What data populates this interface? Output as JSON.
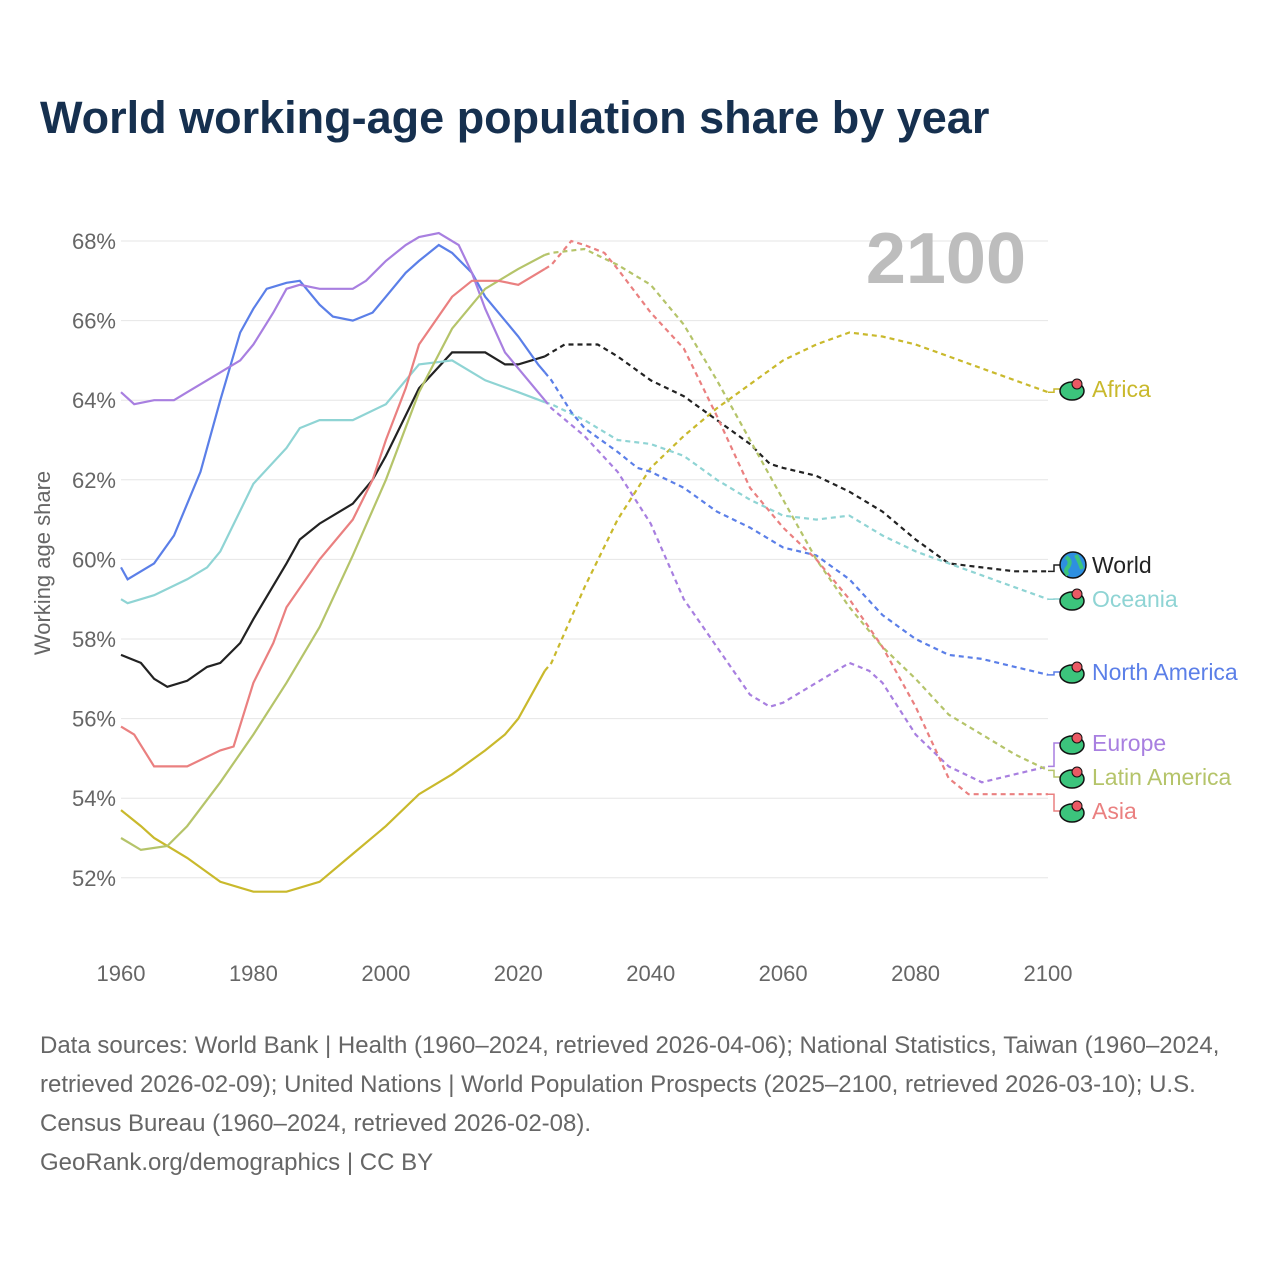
{
  "chart_data": {
    "type": "line",
    "title": "World working-age population share by year",
    "ylabel": "Working age share",
    "xlabel": "",
    "year_label": "2100",
    "xlim": [
      1960,
      2100
    ],
    "ylim": [
      50.5,
      69
    ],
    "x_ticks": [
      "1960",
      "1980",
      "2000",
      "2020",
      "2040",
      "2060",
      "2080",
      "2100"
    ],
    "y_ticks": [
      "52%",
      "54%",
      "56%",
      "58%",
      "60%",
      "62%",
      "64%",
      "66%",
      "68%"
    ],
    "grid": true,
    "projection_start": 2024,
    "series": [
      {
        "name": "Africa",
        "color": "#c9b92c",
        "points": [
          [
            1960,
            53.7
          ],
          [
            1963,
            53.3
          ],
          [
            1965,
            53.0
          ],
          [
            1970,
            52.5
          ],
          [
            1975,
            51.9
          ],
          [
            1980,
            51.65
          ],
          [
            1985,
            51.65
          ],
          [
            1990,
            51.9
          ],
          [
            1995,
            52.6
          ],
          [
            2000,
            53.3
          ],
          [
            2005,
            54.1
          ],
          [
            2010,
            54.6
          ],
          [
            2015,
            55.2
          ],
          [
            2018,
            55.6
          ],
          [
            2020,
            56.0
          ],
          [
            2024,
            57.2
          ],
          [
            2025,
            57.4
          ],
          [
            2030,
            59.3
          ],
          [
            2035,
            61.0
          ],
          [
            2040,
            62.3
          ],
          [
            2045,
            63.1
          ],
          [
            2050,
            63.8
          ],
          [
            2055,
            64.4
          ],
          [
            2060,
            65.0
          ],
          [
            2065,
            65.4
          ],
          [
            2070,
            65.7
          ],
          [
            2075,
            65.6
          ],
          [
            2080,
            65.4
          ],
          [
            2085,
            65.1
          ],
          [
            2090,
            64.8
          ],
          [
            2095,
            64.5
          ],
          [
            2100,
            64.2
          ]
        ]
      },
      {
        "name": "World",
        "color": "#222222",
        "points": [
          [
            1960,
            57.6
          ],
          [
            1963,
            57.4
          ],
          [
            1965,
            57.0
          ],
          [
            1967,
            56.8
          ],
          [
            1970,
            56.95
          ],
          [
            1973,
            57.3
          ],
          [
            1975,
            57.4
          ],
          [
            1978,
            57.9
          ],
          [
            1980,
            58.5
          ],
          [
            1985,
            59.9
          ],
          [
            1987,
            60.5
          ],
          [
            1990,
            60.9
          ],
          [
            1995,
            61.4
          ],
          [
            1998,
            62.0
          ],
          [
            2000,
            62.6
          ],
          [
            2005,
            64.3
          ],
          [
            2010,
            65.2
          ],
          [
            2015,
            65.2
          ],
          [
            2018,
            64.9
          ],
          [
            2020,
            64.9
          ],
          [
            2024,
            65.1
          ],
          [
            2025,
            65.2
          ],
          [
            2027,
            65.4
          ],
          [
            2032,
            65.4
          ],
          [
            2035,
            65.1
          ],
          [
            2040,
            64.5
          ],
          [
            2045,
            64.1
          ],
          [
            2050,
            63.5
          ],
          [
            2055,
            62.9
          ],
          [
            2058,
            62.4
          ],
          [
            2060,
            62.3
          ],
          [
            2065,
            62.1
          ],
          [
            2070,
            61.7
          ],
          [
            2075,
            61.2
          ],
          [
            2080,
            60.5
          ],
          [
            2085,
            59.9
          ],
          [
            2090,
            59.8
          ],
          [
            2095,
            59.7
          ],
          [
            2100,
            59.7
          ]
        ]
      },
      {
        "name": "Oceania",
        "color": "#8fd4d4",
        "points": [
          [
            1960,
            59.0
          ],
          [
            1961,
            58.9
          ],
          [
            1965,
            59.1
          ],
          [
            1970,
            59.5
          ],
          [
            1973,
            59.8
          ],
          [
            1975,
            60.2
          ],
          [
            1980,
            61.9
          ],
          [
            1985,
            62.8
          ],
          [
            1987,
            63.3
          ],
          [
            1990,
            63.5
          ],
          [
            1995,
            63.5
          ],
          [
            2000,
            63.9
          ],
          [
            2003,
            64.5
          ],
          [
            2005,
            64.9
          ],
          [
            2010,
            65.0
          ],
          [
            2013,
            64.7
          ],
          [
            2015,
            64.5
          ],
          [
            2020,
            64.2
          ],
          [
            2024,
            63.95
          ],
          [
            2025,
            63.9
          ],
          [
            2030,
            63.5
          ],
          [
            2035,
            63.0
          ],
          [
            2040,
            62.9
          ],
          [
            2045,
            62.6
          ],
          [
            2050,
            62.0
          ],
          [
            2055,
            61.5
          ],
          [
            2060,
            61.1
          ],
          [
            2065,
            61.0
          ],
          [
            2070,
            61.1
          ],
          [
            2075,
            60.6
          ],
          [
            2080,
            60.2
          ],
          [
            2085,
            59.9
          ],
          [
            2090,
            59.6
          ],
          [
            2095,
            59.3
          ],
          [
            2100,
            59.0
          ]
        ]
      },
      {
        "name": "North America",
        "color": "#5b7fe8",
        "points": [
          [
            1960,
            59.8
          ],
          [
            1961,
            59.5
          ],
          [
            1965,
            59.9
          ],
          [
            1968,
            60.6
          ],
          [
            1972,
            62.2
          ],
          [
            1975,
            64.0
          ],
          [
            1978,
            65.7
          ],
          [
            1980,
            66.3
          ],
          [
            1982,
            66.8
          ],
          [
            1985,
            66.95
          ],
          [
            1987,
            67.0
          ],
          [
            1990,
            66.4
          ],
          [
            1992,
            66.1
          ],
          [
            1995,
            66.0
          ],
          [
            1998,
            66.2
          ],
          [
            2000,
            66.6
          ],
          [
            2003,
            67.2
          ],
          [
            2005,
            67.5
          ],
          [
            2008,
            67.9
          ],
          [
            2010,
            67.7
          ],
          [
            2013,
            67.2
          ],
          [
            2015,
            66.6
          ],
          [
            2020,
            65.6
          ],
          [
            2023,
            64.9
          ],
          [
            2024,
            64.7
          ],
          [
            2025,
            64.5
          ],
          [
            2028,
            63.7
          ],
          [
            2030,
            63.3
          ],
          [
            2035,
            62.7
          ],
          [
            2038,
            62.3
          ],
          [
            2040,
            62.2
          ],
          [
            2045,
            61.8
          ],
          [
            2050,
            61.2
          ],
          [
            2055,
            60.8
          ],
          [
            2060,
            60.3
          ],
          [
            2065,
            60.1
          ],
          [
            2070,
            59.5
          ],
          [
            2075,
            58.6
          ],
          [
            2080,
            58.0
          ],
          [
            2085,
            57.6
          ],
          [
            2090,
            57.5
          ],
          [
            2095,
            57.3
          ],
          [
            2100,
            57.1
          ]
        ]
      },
      {
        "name": "Europe",
        "color": "#a87fe0",
        "points": [
          [
            1960,
            64.2
          ],
          [
            1962,
            63.9
          ],
          [
            1965,
            64.0
          ],
          [
            1968,
            64.0
          ],
          [
            1970,
            64.2
          ],
          [
            1973,
            64.5
          ],
          [
            1978,
            65.0
          ],
          [
            1980,
            65.4
          ],
          [
            1983,
            66.2
          ],
          [
            1985,
            66.8
          ],
          [
            1987,
            66.9
          ],
          [
            1990,
            66.8
          ],
          [
            1995,
            66.8
          ],
          [
            1997,
            67.0
          ],
          [
            2000,
            67.5
          ],
          [
            2003,
            67.9
          ],
          [
            2005,
            68.1
          ],
          [
            2008,
            68.2
          ],
          [
            2011,
            67.9
          ],
          [
            2013,
            67.2
          ],
          [
            2015,
            66.3
          ],
          [
            2018,
            65.2
          ],
          [
            2020,
            64.8
          ],
          [
            2023,
            64.2
          ],
          [
            2024,
            64.0
          ],
          [
            2025,
            63.8
          ],
          [
            2030,
            63.1
          ],
          [
            2035,
            62.2
          ],
          [
            2040,
            60.9
          ],
          [
            2045,
            59.0
          ],
          [
            2050,
            57.8
          ],
          [
            2055,
            56.6
          ],
          [
            2058,
            56.3
          ],
          [
            2060,
            56.4
          ],
          [
            2065,
            56.9
          ],
          [
            2070,
            57.4
          ],
          [
            2073,
            57.2
          ],
          [
            2075,
            56.9
          ],
          [
            2080,
            55.6
          ],
          [
            2085,
            54.8
          ],
          [
            2090,
            54.4
          ],
          [
            2095,
            54.6
          ],
          [
            2100,
            54.8
          ]
        ]
      },
      {
        "name": "Latin America",
        "color": "#b5c46a",
        "points": [
          [
            1960,
            53.0
          ],
          [
            1963,
            52.7
          ],
          [
            1967,
            52.8
          ],
          [
            1970,
            53.3
          ],
          [
            1975,
            54.4
          ],
          [
            1980,
            55.6
          ],
          [
            1985,
            56.9
          ],
          [
            1990,
            58.3
          ],
          [
            1995,
            60.1
          ],
          [
            2000,
            62.0
          ],
          [
            2005,
            64.2
          ],
          [
            2010,
            65.8
          ],
          [
            2015,
            66.8
          ],
          [
            2020,
            67.3
          ],
          [
            2024,
            67.65
          ],
          [
            2025,
            67.7
          ],
          [
            2030,
            67.8
          ],
          [
            2035,
            67.4
          ],
          [
            2040,
            66.9
          ],
          [
            2045,
            65.9
          ],
          [
            2050,
            64.5
          ],
          [
            2055,
            63.0
          ],
          [
            2060,
            61.5
          ],
          [
            2065,
            60.0
          ],
          [
            2070,
            58.8
          ],
          [
            2075,
            57.8
          ],
          [
            2080,
            57.0
          ],
          [
            2085,
            56.1
          ],
          [
            2090,
            55.6
          ],
          [
            2095,
            55.1
          ],
          [
            2100,
            54.7
          ]
        ]
      },
      {
        "name": "Asia",
        "color": "#ea8080",
        "points": [
          [
            1960,
            55.8
          ],
          [
            1962,
            55.6
          ],
          [
            1965,
            54.8
          ],
          [
            1970,
            54.8
          ],
          [
            1975,
            55.2
          ],
          [
            1977,
            55.3
          ],
          [
            1980,
            56.9
          ],
          [
            1983,
            57.9
          ],
          [
            1985,
            58.8
          ],
          [
            1990,
            60.0
          ],
          [
            1995,
            61.0
          ],
          [
            1998,
            62.0
          ],
          [
            2000,
            63.0
          ],
          [
            2003,
            64.3
          ],
          [
            2005,
            65.4
          ],
          [
            2010,
            66.6
          ],
          [
            2013,
            67.0
          ],
          [
            2017,
            67.0
          ],
          [
            2020,
            66.9
          ],
          [
            2024,
            67.3
          ],
          [
            2025,
            67.4
          ],
          [
            2028,
            68.0
          ],
          [
            2030,
            67.9
          ],
          [
            2033,
            67.7
          ],
          [
            2035,
            67.3
          ],
          [
            2040,
            66.2
          ],
          [
            2045,
            65.3
          ],
          [
            2050,
            63.6
          ],
          [
            2055,
            61.8
          ],
          [
            2060,
            60.8
          ],
          [
            2065,
            60.0
          ],
          [
            2070,
            59.0
          ],
          [
            2075,
            57.8
          ],
          [
            2080,
            56.3
          ],
          [
            2085,
            54.5
          ],
          [
            2088,
            54.1
          ],
          [
            2090,
            54.1
          ],
          [
            2100,
            54.1
          ]
        ]
      }
    ]
  },
  "footer": {
    "sources": "Data sources: World Bank | Health (1960–2024, retrieved 2026-04-06); National Statistics, Taiwan (1960–2024, retrieved 2026-02-09); United Nations | World Population Prospects (2025–2100, retrieved 2026-03-10); U.S. Census Bureau (1960–2024, retrieved 2026-02-08).",
    "credit": "GeoRank.org/demographics | CC BY"
  }
}
